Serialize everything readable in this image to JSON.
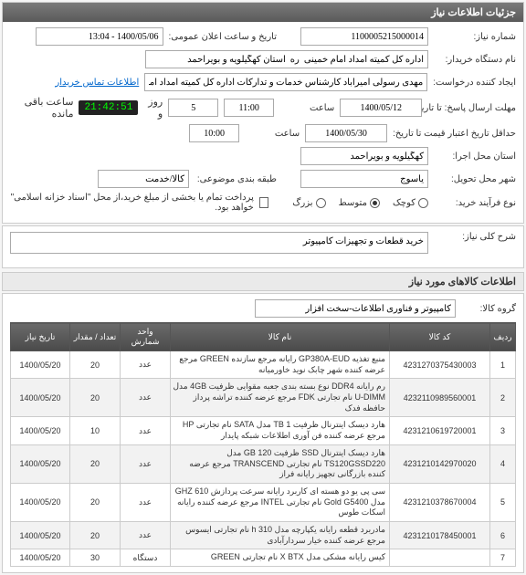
{
  "panels": {
    "main_title": "جزئیات اطلاعات نیاز"
  },
  "labels": {
    "need_no": "شماره نیاز:",
    "announce_dt": "تاریخ و ساعت اعلان عمومی:",
    "buyer_org": "نام دستگاه خریدار:",
    "requester": "ایجاد کننده درخواست:",
    "resp_deadline": "مهلت ارسال پاسخ: تا تاریخ:",
    "credit_hist": "حداقل تاریخ اعتبار قیمت تا تاریخ:",
    "exec_prov": "استان محل اجرا:",
    "deliv_city": "شهر محل تحویل:",
    "subject_cat": "طبقه بندی موضوعی:",
    "buy_proc": "نوع فرآیند خرید:",
    "time_lbl": "ساعت",
    "day_lbl": "روز و",
    "remain_lbl": "ساعت باقی مانده",
    "need_desc": "شرح کلی نیاز:",
    "goods_group": "گروه کالا:",
    "payment_note": "پرداخت تمام یا بخشی از مبلغ خرید،از محل \"اسناد خزانه اسلامی\" خواهد بود."
  },
  "values": {
    "need_no": "1100005215000014",
    "announce_dt": "1400/05/06 - 13:04",
    "buyer_org": "اداره کل کمیته امداد امام خمینی  ره  استان کهگیلویه و بویراحمد",
    "requester": "مهدی رسولی امیرآباد کارشناس خدمات و تدارکات اداره کل کمیته امداد امام خ",
    "resp_date": "1400/05/12",
    "resp_time": "11:00",
    "resp_days": "5",
    "countdown": "21:42:51",
    "credit_date": "1400/05/30",
    "credit_time": "10:00",
    "exec_prov": "کهگیلویه و بویراحمد",
    "deliv_city": "یاسوج",
    "subject_cat": "کالا/خدمت",
    "need_desc": "خرید قطعات و تجهیزات کامپیوتر",
    "goods_group": "کامپیوتر و فناوری اطلاعات-سخت افزار"
  },
  "links": {
    "buyer_contact": "اطلاعات تماس خریدار"
  },
  "radios": {
    "proc": [
      "کوچک",
      "متوسط",
      "بزرگ"
    ],
    "proc_selected": 1
  },
  "sections": {
    "goods_info": "اطلاعات کالاهای مورد نیاز"
  },
  "table": {
    "headers": [
      "ردیف",
      "کد کالا",
      "نام کالا",
      "واحد شمارش",
      "تعداد / مقدار",
      "تاریخ نیاز"
    ],
    "rows": [
      {
        "idx": "1",
        "code": "4231270375430003",
        "name": "منبع تغذیه GP380A-EUD رایانه مرجع سازنده GREEN مرجع عرضه کننده شهر چابک نوید خاورمیانه",
        "unit": "عدد",
        "qty": "20",
        "date": "1400/05/20"
      },
      {
        "idx": "2",
        "code": "4232110989560001",
        "name": "رم رایانه DDR4 نوع بسته بندی جعبه مقوایی ظرفیت 4GB مدل U-DIMM نام تجارتی FDK مرجع عرضه کننده تراشه پرداز حافظه فدک",
        "unit": "عدد",
        "qty": "20",
        "date": "1400/05/20"
      },
      {
        "idx": "3",
        "code": "4231210619720001",
        "name": "هارد دیسک اینترنال ظرفیت TB 1 مدل SATA نام تجارتی HP مرجع عرضه کننده فن آوری اطلاعات شبکه پایدار",
        "unit": "عدد",
        "qty": "10",
        "date": "1400/05/20"
      },
      {
        "idx": "4",
        "code": "4231210142970020",
        "name": "هارد دیسک اینترنال SSD ظرفیت GB 120 مدل TS120GSSD220 نام تجارتی TRANSCEND مرجع عرضه کننده بازرگانی تجهیز رایانه فراز",
        "unit": "عدد",
        "qty": "20",
        "date": "1400/05/20"
      },
      {
        "idx": "5",
        "code": "4231210378670004",
        "name": "سی پی یو دو هسته ای کاربرد رایانه سرعت پردازش 610 GHZ مدل Gold G5400 نام تجارتی INTEL مرجع عرضه کننده رایانه اسکات طوس",
        "unit": "عدد",
        "qty": "20",
        "date": "1400/05/20"
      },
      {
        "idx": "6",
        "code": "4231210178450001",
        "name": "مادربرد قطعه رایانه یکپارچه مدل h 310 نام تجارتی ایسوس مرجع عرضه کننده خیار سردارآبادی",
        "unit": "عدد",
        "qty": "20",
        "date": "1400/05/20"
      },
      {
        "idx": "7",
        "code": "",
        "name": "کیس رایانه مشکی مدل X BTX نام تجارتی GREEN",
        "unit": "دستگاه",
        "qty": "30",
        "date": "1400/05/20"
      }
    ]
  },
  "colors": {
    "header_bg": "#6a6a6a",
    "link": "#0066cc",
    "countdown_bg": "#222222",
    "countdown_fg": "#00ff44"
  }
}
